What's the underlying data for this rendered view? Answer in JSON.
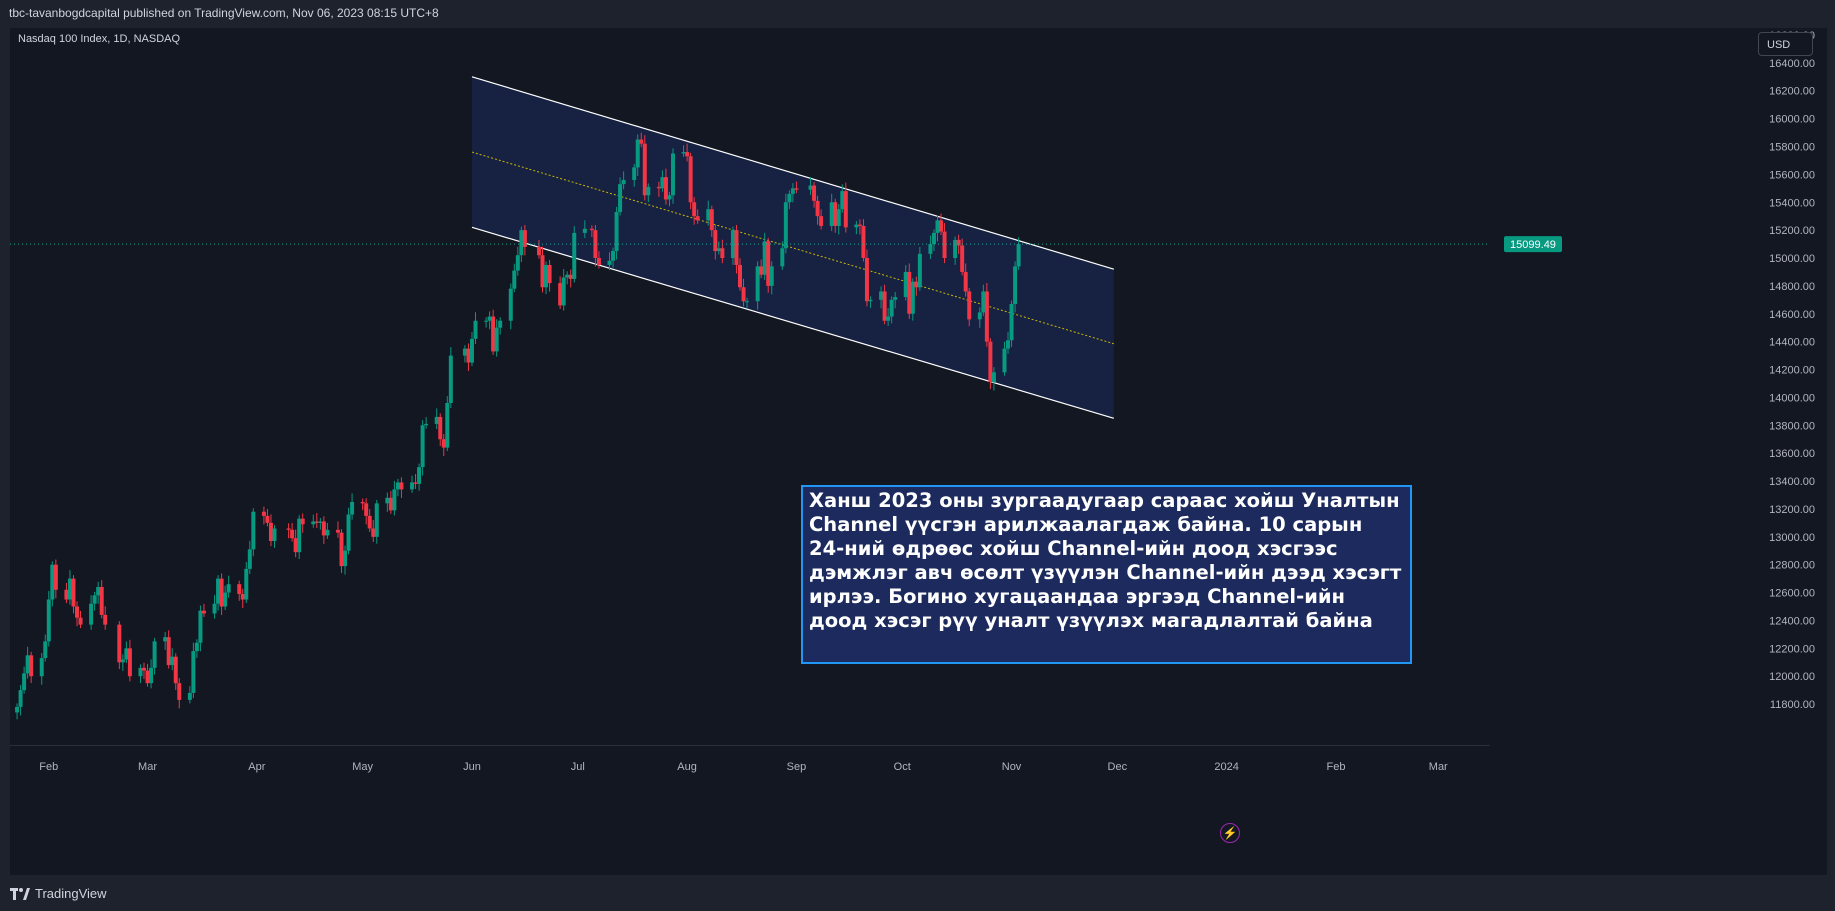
{
  "header": {
    "publisher": "tbc-tavanbogdcapital published on TradingView.com, Nov 06, 2023 08:15 UTC+8"
  },
  "chart": {
    "legend": "Nasdaq 100 Index, 1D, NASDAQ",
    "currency_button": "USD",
    "price_badge": "15099.49",
    "annotation": "Ханш 2023 оны зургаадугаар сараас хойш Уналтын Channel үүсгэн арилжаалагдаж байна. 10 сарын 24-ний өдрөөс хойш Channel-ийн доод хэсгээс дэмжлэг авч өсөлт үзүүлэн Channel-ийн дээд хэсэгт ирлээ. Богино хугацаандаа эргээд Channel-ийн доод хэсэг рүү уналт үзүүлэх магадлалтай байна"
  },
  "footer": {
    "brand": "TradingView"
  },
  "icons": {
    "alert": "lightning-icon",
    "logo": "tradingview-logo-icon"
  },
  "colors": {
    "up": "#089981",
    "down": "#f23645",
    "accent": "#2196f3",
    "channel_fill": "#1c2a5d",
    "midline": "#c9b800",
    "price_line": "#22ab94"
  },
  "chart_data": {
    "type": "candlestick",
    "instrument": "Nasdaq 100 Index",
    "interval": "1D",
    "exchange": "NASDAQ",
    "last_price": 15099.49,
    "ylim": [
      11650,
      16650
    ],
    "y_ticks": [
      11800,
      12000,
      12200,
      12400,
      12600,
      12800,
      13000,
      13200,
      13400,
      13600,
      13800,
      14000,
      14200,
      14400,
      14600,
      14800,
      15000,
      15200,
      15400,
      15600,
      15800,
      16000,
      16200,
      16400,
      16600
    ],
    "x_ticks": [
      "Feb",
      "Mar",
      "Apr",
      "May",
      "Jun",
      "Jul",
      "Aug",
      "Sep",
      "Oct",
      "Nov",
      "Dec",
      "2024",
      "Feb",
      "Mar"
    ],
    "channel": {
      "upper": [
        {
          "date": "2023-06-01",
          "value": 16300
        },
        {
          "date": "2023-11-30",
          "value": 14920
        }
      ],
      "lower": [
        {
          "date": "2023-06-01",
          "value": 15220
        },
        {
          "date": "2023-11-30",
          "value": 13850
        }
      ],
      "mid": [
        {
          "date": "2023-06-01",
          "value": 15760
        },
        {
          "date": "2023-11-30",
          "value": 14385
        }
      ]
    },
    "series": [
      {
        "date": "2023-01-23",
        "close": 11780
      },
      {
        "date": "2023-01-24",
        "close": 11900
      },
      {
        "date": "2023-01-25",
        "close": 12020
      },
      {
        "date": "2023-01-26",
        "close": 12150
      },
      {
        "date": "2023-01-27",
        "close": 12000
      },
      {
        "date": "2023-01-30",
        "close": 12130
      },
      {
        "date": "2023-01-31",
        "close": 12250
      },
      {
        "date": "2023-02-01",
        "close": 12550
      },
      {
        "date": "2023-02-02",
        "close": 12800
      },
      {
        "date": "2023-02-03",
        "close": 12620
      },
      {
        "date": "2023-02-06",
        "close": 12550
      },
      {
        "date": "2023-02-07",
        "close": 12700
      },
      {
        "date": "2023-02-08",
        "close": 12500
      },
      {
        "date": "2023-02-09",
        "close": 12420
      },
      {
        "date": "2023-02-10",
        "close": 12370
      },
      {
        "date": "2023-02-13",
        "close": 12520
      },
      {
        "date": "2023-02-14",
        "close": 12580
      },
      {
        "date": "2023-02-15",
        "close": 12640
      },
      {
        "date": "2023-02-16",
        "close": 12440
      },
      {
        "date": "2023-02-17",
        "close": 12370
      },
      {
        "date": "2023-02-21",
        "close": 12100
      },
      {
        "date": "2023-02-22",
        "close": 12120
      },
      {
        "date": "2023-02-23",
        "close": 12200
      },
      {
        "date": "2023-02-24",
        "close": 12000
      },
      {
        "date": "2023-02-27",
        "close": 12060
      },
      {
        "date": "2023-02-28",
        "close": 12040
      },
      {
        "date": "2023-03-01",
        "close": 11950
      },
      {
        "date": "2023-03-02",
        "close": 12060
      },
      {
        "date": "2023-03-03",
        "close": 12250
      },
      {
        "date": "2023-03-06",
        "close": 12280
      },
      {
        "date": "2023-03-07",
        "close": 12080
      },
      {
        "date": "2023-03-08",
        "close": 12140
      },
      {
        "date": "2023-03-09",
        "close": 11950
      },
      {
        "date": "2023-03-10",
        "close": 11830
      },
      {
        "date": "2023-03-13",
        "close": 11880
      },
      {
        "date": "2023-03-14",
        "close": 12180
      },
      {
        "date": "2023-03-15",
        "close": 12240
      },
      {
        "date": "2023-03-16",
        "close": 12470
      },
      {
        "date": "2023-03-17",
        "close": 12450
      },
      {
        "date": "2023-03-20",
        "close": 12520
      },
      {
        "date": "2023-03-21",
        "close": 12700
      },
      {
        "date": "2023-03-22",
        "close": 12500
      },
      {
        "date": "2023-03-23",
        "close": 12600
      },
      {
        "date": "2023-03-24",
        "close": 12660
      },
      {
        "date": "2023-03-27",
        "close": 12590
      },
      {
        "date": "2023-03-28",
        "close": 12550
      },
      {
        "date": "2023-03-29",
        "close": 12770
      },
      {
        "date": "2023-03-30",
        "close": 12910
      },
      {
        "date": "2023-03-31",
        "close": 13180
      },
      {
        "date": "2023-04-03",
        "close": 13150
      },
      {
        "date": "2023-04-04",
        "close": 13100
      },
      {
        "date": "2023-04-05",
        "close": 12970
      },
      {
        "date": "2023-04-06",
        "close": 13060
      },
      {
        "date": "2023-04-10",
        "close": 13050
      },
      {
        "date": "2023-04-11",
        "close": 12990
      },
      {
        "date": "2023-04-12",
        "close": 12890
      },
      {
        "date": "2023-04-13",
        "close": 13130
      },
      {
        "date": "2023-04-14",
        "close": 13090
      },
      {
        "date": "2023-04-17",
        "close": 13110
      },
      {
        "date": "2023-04-18",
        "close": 13100
      },
      {
        "date": "2023-04-19",
        "close": 13110
      },
      {
        "date": "2023-04-20",
        "close": 13010
      },
      {
        "date": "2023-04-21",
        "close": 13050
      },
      {
        "date": "2023-04-24",
        "close": 13030
      },
      {
        "date": "2023-04-25",
        "close": 12790
      },
      {
        "date": "2023-04-26",
        "close": 12900
      },
      {
        "date": "2023-04-27",
        "close": 13160
      },
      {
        "date": "2023-04-28",
        "close": 13250
      },
      {
        "date": "2023-05-01",
        "close": 13240
      },
      {
        "date": "2023-05-02",
        "close": 13150
      },
      {
        "date": "2023-05-03",
        "close": 13060
      },
      {
        "date": "2023-05-04",
        "close": 13000
      },
      {
        "date": "2023-05-05",
        "close": 13240
      },
      {
        "date": "2023-05-08",
        "close": 13280
      },
      {
        "date": "2023-05-09",
        "close": 13190
      },
      {
        "date": "2023-05-10",
        "close": 13340
      },
      {
        "date": "2023-05-11",
        "close": 13390
      },
      {
        "date": "2023-05-12",
        "close": 13340
      },
      {
        "date": "2023-05-15",
        "close": 13390
      },
      {
        "date": "2023-05-16",
        "close": 13380
      },
      {
        "date": "2023-05-17",
        "close": 13500
      },
      {
        "date": "2023-05-18",
        "close": 13800
      },
      {
        "date": "2023-05-19",
        "close": 13810
      },
      {
        "date": "2023-05-22",
        "close": 13860
      },
      {
        "date": "2023-05-23",
        "close": 13700
      },
      {
        "date": "2023-05-24",
        "close": 13640
      },
      {
        "date": "2023-05-25",
        "close": 13960
      },
      {
        "date": "2023-05-26",
        "close": 14300
      },
      {
        "date": "2023-05-30",
        "close": 14350
      },
      {
        "date": "2023-05-31",
        "close": 14250
      },
      {
        "date": "2023-06-01",
        "close": 14420
      },
      {
        "date": "2023-06-02",
        "close": 14550
      },
      {
        "date": "2023-06-05",
        "close": 14550
      },
      {
        "date": "2023-06-06",
        "close": 14580
      },
      {
        "date": "2023-06-07",
        "close": 14330
      },
      {
        "date": "2023-06-08",
        "close": 14500
      },
      {
        "date": "2023-06-09",
        "close": 14550
      },
      {
        "date": "2023-06-12",
        "close": 14780
      },
      {
        "date": "2023-06-13",
        "close": 14910
      },
      {
        "date": "2023-06-14",
        "close": 15020
      },
      {
        "date": "2023-06-15",
        "close": 15200
      },
      {
        "date": "2023-06-16",
        "close": 15080
      },
      {
        "date": "2023-06-20",
        "close": 15020
      },
      {
        "date": "2023-06-21",
        "close": 14790
      },
      {
        "date": "2023-06-22",
        "close": 14950
      },
      {
        "date": "2023-06-23",
        "close": 14820
      },
      {
        "date": "2023-06-26",
        "close": 14660
      },
      {
        "date": "2023-06-27",
        "close": 14860
      },
      {
        "date": "2023-06-28",
        "close": 14880
      },
      {
        "date": "2023-06-29",
        "close": 14850
      },
      {
        "date": "2023-06-30",
        "close": 15180
      },
      {
        "date": "2023-07-03",
        "close": 15210
      },
      {
        "date": "2023-07-05",
        "close": 15200
      },
      {
        "date": "2023-07-06",
        "close": 15000
      },
      {
        "date": "2023-07-07",
        "close": 14950
      },
      {
        "date": "2023-07-10",
        "close": 14980
      },
      {
        "date": "2023-07-11",
        "close": 15050
      },
      {
        "date": "2023-07-12",
        "close": 15330
      },
      {
        "date": "2023-07-13",
        "close": 15530
      },
      {
        "date": "2023-07-14",
        "close": 15560
      },
      {
        "date": "2023-07-17",
        "close": 15650
      },
      {
        "date": "2023-07-18",
        "close": 15850
      },
      {
        "date": "2023-07-19",
        "close": 15820
      },
      {
        "date": "2023-07-20",
        "close": 15450
      },
      {
        "date": "2023-07-21",
        "close": 15510
      },
      {
        "date": "2023-07-24",
        "close": 15500
      },
      {
        "date": "2023-07-25",
        "close": 15580
      },
      {
        "date": "2023-07-26",
        "close": 15420
      },
      {
        "date": "2023-07-27",
        "close": 15450
      },
      {
        "date": "2023-07-28",
        "close": 15750
      },
      {
        "date": "2023-07-31",
        "close": 15760
      },
      {
        "date": "2023-08-01",
        "close": 15730
      },
      {
        "date": "2023-08-02",
        "close": 15400
      },
      {
        "date": "2023-08-03",
        "close": 15300
      },
      {
        "date": "2023-08-04",
        "close": 15270
      },
      {
        "date": "2023-08-07",
        "close": 15350
      },
      {
        "date": "2023-08-08",
        "close": 15200
      },
      {
        "date": "2023-08-09",
        "close": 15050
      },
      {
        "date": "2023-08-10",
        "close": 15070
      },
      {
        "date": "2023-08-11",
        "close": 15000
      },
      {
        "date": "2023-08-14",
        "close": 15200
      },
      {
        "date": "2023-08-15",
        "close": 14950
      },
      {
        "date": "2023-08-16",
        "close": 14790
      },
      {
        "date": "2023-08-17",
        "close": 14690
      },
      {
        "date": "2023-08-18",
        "close": 14690
      },
      {
        "date": "2023-08-21",
        "close": 14940
      },
      {
        "date": "2023-08-22",
        "close": 14880
      },
      {
        "date": "2023-08-23",
        "close": 15120
      },
      {
        "date": "2023-08-24",
        "close": 14800
      },
      {
        "date": "2023-08-25",
        "close": 14940
      },
      {
        "date": "2023-08-28",
        "close": 15070
      },
      {
        "date": "2023-08-29",
        "close": 15400
      },
      {
        "date": "2023-08-30",
        "close": 15460
      },
      {
        "date": "2023-08-31",
        "close": 15500
      },
      {
        "date": "2023-09-01",
        "close": 15490
      },
      {
        "date": "2023-09-05",
        "close": 15520
      },
      {
        "date": "2023-09-06",
        "close": 15410
      },
      {
        "date": "2023-09-07",
        "close": 15300
      },
      {
        "date": "2023-09-08",
        "close": 15230
      },
      {
        "date": "2023-09-11",
        "close": 15400
      },
      {
        "date": "2023-09-12",
        "close": 15230
      },
      {
        "date": "2023-09-13",
        "close": 15350
      },
      {
        "date": "2023-09-14",
        "close": 15480
      },
      {
        "date": "2023-09-15",
        "close": 15220
      },
      {
        "date": "2023-09-18",
        "close": 15240
      },
      {
        "date": "2023-09-19",
        "close": 15230
      },
      {
        "date": "2023-09-20",
        "close": 15000
      },
      {
        "date": "2023-09-21",
        "close": 14690
      },
      {
        "date": "2023-09-22",
        "close": 14700
      },
      {
        "date": "2023-09-25",
        "close": 14760
      },
      {
        "date": "2023-09-26",
        "close": 14550
      },
      {
        "date": "2023-09-27",
        "close": 14580
      },
      {
        "date": "2023-09-28",
        "close": 14700
      },
      {
        "date": "2023-09-29",
        "close": 14720
      },
      {
        "date": "2023-10-02",
        "close": 14900
      },
      {
        "date": "2023-10-03",
        "close": 14600
      },
      {
        "date": "2023-10-04",
        "close": 14830
      },
      {
        "date": "2023-10-05",
        "close": 14790
      },
      {
        "date": "2023-10-06",
        "close": 15030
      },
      {
        "date": "2023-10-09",
        "close": 15100
      },
      {
        "date": "2023-10-10",
        "close": 15180
      },
      {
        "date": "2023-10-11",
        "close": 15270
      },
      {
        "date": "2023-10-12",
        "close": 15190
      },
      {
        "date": "2023-10-13",
        "close": 15000
      },
      {
        "date": "2023-10-16",
        "close": 15130
      },
      {
        "date": "2023-10-17",
        "close": 15090
      },
      {
        "date": "2023-10-18",
        "close": 14900
      },
      {
        "date": "2023-10-19",
        "close": 14760
      },
      {
        "date": "2023-10-20",
        "close": 14560
      },
      {
        "date": "2023-10-23",
        "close": 14610
      },
      {
        "date": "2023-10-24",
        "close": 14760
      },
      {
        "date": "2023-10-25",
        "close": 14400
      },
      {
        "date": "2023-10-26",
        "close": 14110
      },
      {
        "date": "2023-10-27",
        "close": 14180
      },
      {
        "date": "2023-10-30",
        "close": 14350
      },
      {
        "date": "2023-10-31",
        "close": 14410
      },
      {
        "date": "2023-11-01",
        "close": 14670
      },
      {
        "date": "2023-11-02",
        "close": 14940
      },
      {
        "date": "2023-11-03",
        "close": 15099.49
      }
    ]
  }
}
